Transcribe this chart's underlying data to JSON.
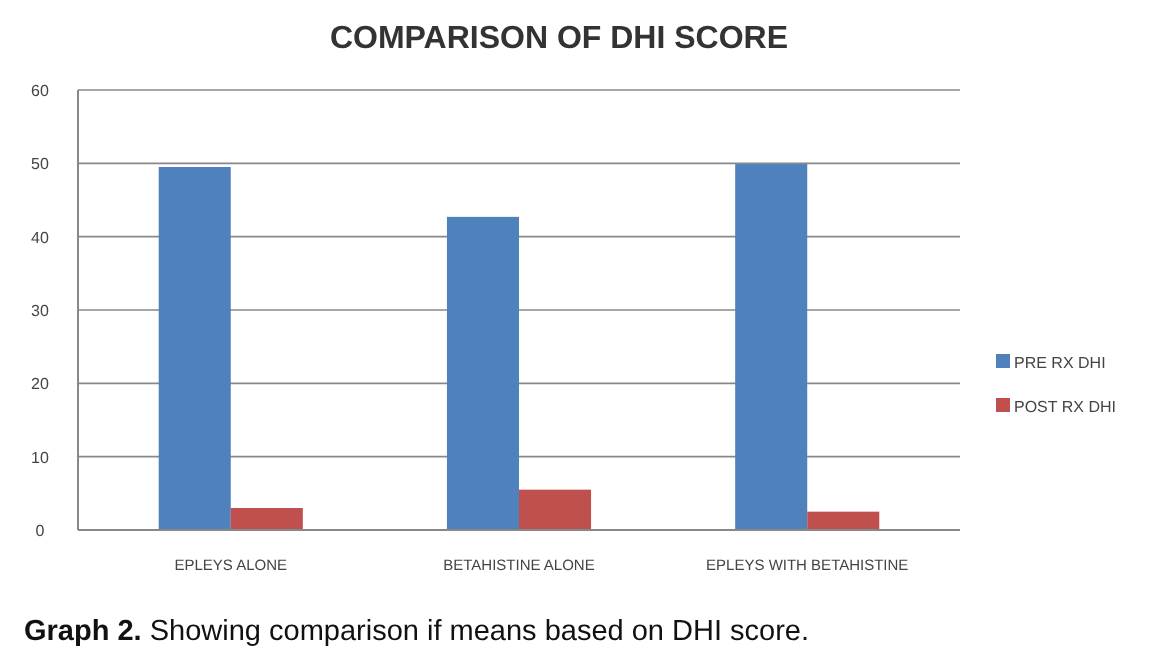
{
  "chart_data": {
    "type": "bar",
    "title": "COMPARISON OF DHI SCORE",
    "categories": [
      "EPLEYS ALONE",
      "BETAHISTINE  ALONE",
      "EPLEYS WITH BETAHISTINE"
    ],
    "series": [
      {
        "name": "PRE RX DHI",
        "color": "#4f81bd",
        "values": [
          49.5,
          42.7,
          49.9
        ]
      },
      {
        "name": "POST RX  DHI",
        "color": "#c0504d",
        "values": [
          3,
          5.5,
          2.5
        ]
      }
    ],
    "ylim": [
      0,
      60
    ],
    "yticks": [
      0,
      10,
      20,
      30,
      40,
      50,
      60
    ],
    "grid": "y",
    "legend": "right",
    "annotations": [
      "Graph 2. Showing comparison if means based on DHI score."
    ]
  }
}
